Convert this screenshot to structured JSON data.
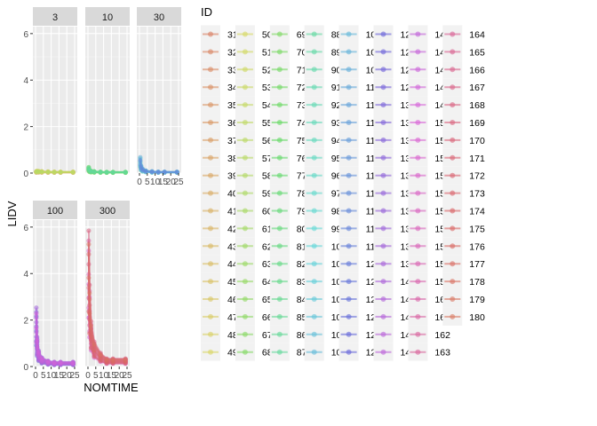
{
  "chart_data": {
    "type": "line",
    "facet_type": "facet_wrap",
    "facet_variable": "dose",
    "panels": [
      {
        "label": "3",
        "ymax_series": [
          0.08,
          0.1,
          0.09,
          0.08,
          0.07,
          0.06
        ]
      },
      {
        "label": "10",
        "ymax_series": [
          0.28,
          0.15,
          0.1,
          0.08,
          0.06,
          0.05
        ]
      },
      {
        "label": "30",
        "ymax_series": [
          0.75,
          0.35,
          0.2,
          0.12,
          0.08,
          0.06
        ]
      },
      {
        "label": "100",
        "ymax_series": [
          2.6,
          1.3,
          0.7,
          0.4,
          0.25,
          0.2
        ]
      },
      {
        "label": "300",
        "ymax_series": [
          6.0,
          3.6,
          2.0,
          1.1,
          0.6,
          0.35
        ]
      }
    ],
    "nomtime": [
      0.5,
      1,
      2,
      4,
      8,
      12,
      16,
      24
    ],
    "xlabel": "NOMTIME",
    "ylabel": "LIDV",
    "xlim": [
      0,
      25
    ],
    "ylim": [
      0,
      6.3
    ],
    "x_ticks": [
      0,
      5,
      10,
      15,
      20,
      25
    ],
    "x_tick_labels": [
      "0",
      "5",
      "10",
      "15",
      "20",
      "25"
    ],
    "y_ticks": [
      0,
      2,
      4,
      6
    ],
    "y_tick_labels": [
      "0",
      "2",
      "4",
      "6"
    ],
    "grid": true,
    "legend": {
      "title": "ID",
      "placement": "right",
      "ids": [
        31,
        32,
        33,
        34,
        35,
        36,
        37,
        38,
        39,
        40,
        41,
        42,
        43,
        44,
        45,
        46,
        47,
        48,
        49,
        50,
        51,
        52,
        53,
        54,
        55,
        56,
        57,
        58,
        59,
        60,
        61,
        62,
        63,
        64,
        65,
        66,
        67,
        68,
        69,
        70,
        71,
        72,
        73,
        74,
        75,
        76,
        77,
        78,
        79,
        80,
        81,
        82,
        83,
        84,
        85,
        86,
        87,
        88,
        89,
        90,
        91,
        92,
        93,
        94,
        95,
        96,
        97,
        98,
        99,
        100,
        101,
        102,
        103,
        104,
        105,
        106,
        107,
        108,
        109,
        110,
        111,
        112,
        113,
        114,
        115,
        116,
        117,
        118,
        119,
        120,
        121,
        122,
        123,
        124,
        125,
        126,
        127,
        128,
        129,
        130,
        131,
        132,
        133,
        134,
        135,
        136,
        137,
        138,
        139,
        140,
        141,
        142,
        143,
        144,
        145,
        146,
        147,
        148,
        149,
        150,
        151,
        152,
        153,
        154,
        155,
        156,
        157,
        158,
        159,
        160,
        161,
        162,
        163,
        164,
        165,
        166,
        167,
        168,
        169,
        170,
        171,
        172,
        173,
        174,
        175,
        176,
        177,
        178,
        179,
        180
      ],
      "column_length": 19
    }
  }
}
